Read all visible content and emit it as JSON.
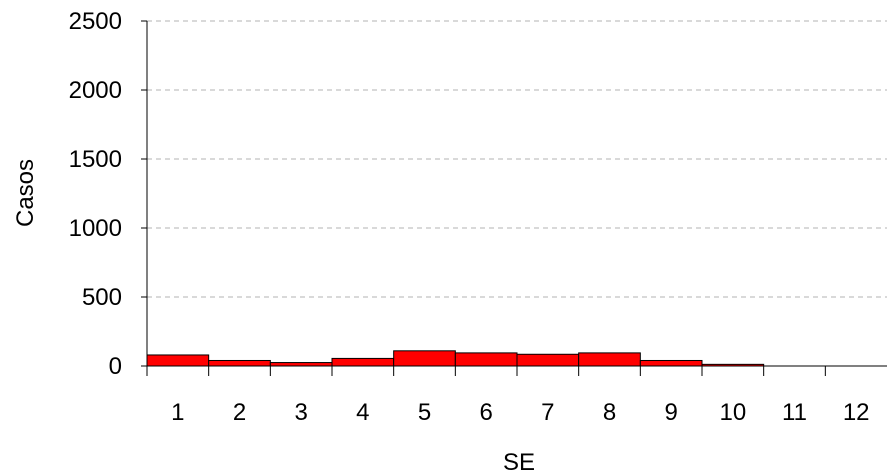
{
  "chart_data": {
    "type": "bar",
    "title": "",
    "xlabel": "SE",
    "ylabel": "Casos",
    "categories": [
      "1",
      "2",
      "3",
      "4",
      "5",
      "6",
      "7",
      "8",
      "9",
      "10",
      "11",
      "12"
    ],
    "values": [
      80,
      40,
      25,
      55,
      110,
      95,
      85,
      95,
      40,
      12,
      0,
      0
    ],
    "ylim": [
      0,
      2500
    ],
    "yticks": [
      "0",
      "500",
      "1000",
      "1500",
      "2000",
      "2500"
    ],
    "grid": true,
    "legend": "none",
    "colors": {
      "bar_fill": "#ff0000",
      "bar_stroke": "#000000",
      "grid": "#b3b3b3",
      "axis": "#000000"
    }
  }
}
